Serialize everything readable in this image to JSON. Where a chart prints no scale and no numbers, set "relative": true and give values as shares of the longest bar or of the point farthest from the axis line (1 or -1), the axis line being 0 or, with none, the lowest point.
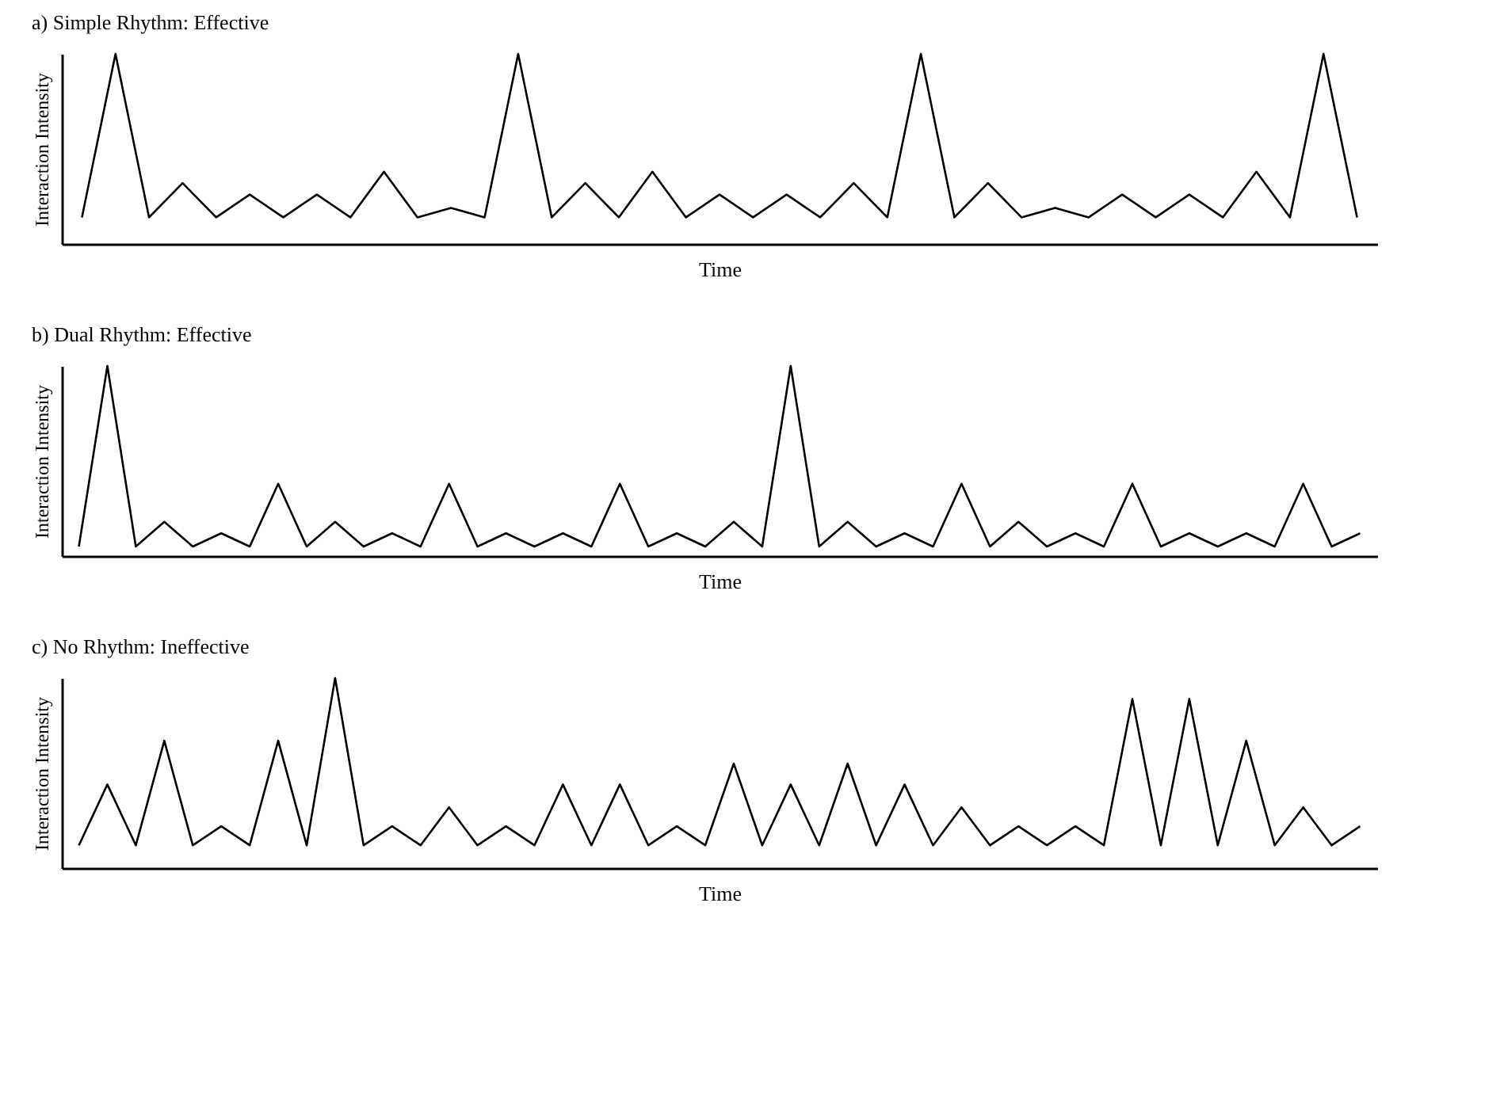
{
  "chart_data": [
    {
      "type": "line",
      "title": "a) Simple Rhythm: Effective",
      "xlabel": "Time",
      "ylabel": "Interaction Intensity",
      "relative": true,
      "color": "#000000",
      "categories": [
        null,
        null,
        null,
        null,
        null,
        null,
        null,
        null,
        null,
        null,
        null,
        null,
        null,
        null,
        null,
        null,
        null,
        null,
        null,
        null,
        null,
        null,
        null,
        null,
        null,
        null,
        null,
        null,
        null,
        null,
        null,
        null,
        null,
        null,
        null,
        null,
        null,
        null,
        null
      ],
      "values": [
        0.14,
        1,
        0.14,
        0.32,
        0.14,
        0.26,
        0.14,
        0.26,
        0.14,
        0.38,
        0.14,
        0.19,
        0.14,
        1,
        0.14,
        0.32,
        0.14,
        0.38,
        0.14,
        0.26,
        0.14,
        0.26,
        0.14,
        0.32,
        0.14,
        1,
        0.14,
        0.32,
        0.14,
        0.19,
        0.14,
        0.26,
        0.14,
        0.26,
        0.14,
        0.38,
        0.14,
        1,
        0.14
      ]
    },
    {
      "type": "line",
      "title": "b) Dual Rhythm: Effective",
      "xlabel": "Time",
      "ylabel": "Interaction Intensity",
      "relative": true,
      "color": "#000000",
      "categories": [
        null,
        null,
        null,
        null,
        null,
        null,
        null,
        null,
        null,
        null,
        null,
        null,
        null,
        null,
        null,
        null,
        null,
        null,
        null,
        null,
        null,
        null,
        null,
        null,
        null,
        null,
        null,
        null,
        null,
        null,
        null,
        null,
        null,
        null,
        null,
        null,
        null,
        null,
        null,
        null,
        null,
        null,
        null,
        null,
        null,
        null
      ],
      "values": [
        0.05,
        1,
        0.05,
        0.18,
        0.05,
        0.12,
        0.05,
        0.38,
        0.05,
        0.18,
        0.05,
        0.12,
        0.05,
        0.38,
        0.05,
        0.12,
        0.05,
        0.12,
        0.05,
        0.38,
        0.05,
        0.12,
        0.05,
        0.18,
        0.05,
        1,
        0.05,
        0.18,
        0.05,
        0.12,
        0.05,
        0.38,
        0.05,
        0.18,
        0.05,
        0.12,
        0.05,
        0.38,
        0.05,
        0.12,
        0.05,
        0.12,
        0.05,
        0.38,
        0.05,
        0.12
      ]
    },
    {
      "type": "line",
      "title": "c) No Rhythm: Ineffective",
      "xlabel": "Time",
      "ylabel": "Interaction Intensity",
      "relative": true,
      "color": "#000000",
      "categories": [
        null,
        null,
        null,
        null,
        null,
        null,
        null,
        null,
        null,
        null,
        null,
        null,
        null,
        null,
        null,
        null,
        null,
        null,
        null,
        null,
        null,
        null,
        null,
        null,
        null,
        null,
        null,
        null,
        null,
        null,
        null,
        null,
        null,
        null,
        null,
        null,
        null,
        null,
        null,
        null,
        null,
        null,
        null,
        null,
        null,
        null
      ],
      "values": [
        0.12,
        0.44,
        0.12,
        0.67,
        0.12,
        0.22,
        0.12,
        0.67,
        0.12,
        1,
        0.12,
        0.22,
        0.12,
        0.32,
        0.12,
        0.22,
        0.12,
        0.44,
        0.12,
        0.44,
        0.12,
        0.22,
        0.12,
        0.55,
        0.12,
        0.44,
        0.12,
        0.55,
        0.12,
        0.44,
        0.12,
        0.32,
        0.12,
        0.22,
        0.12,
        0.22,
        0.12,
        0.89,
        0.12,
        0.89,
        0.12,
        0.67,
        0.12,
        0.32,
        0.12,
        0.22
      ]
    }
  ]
}
